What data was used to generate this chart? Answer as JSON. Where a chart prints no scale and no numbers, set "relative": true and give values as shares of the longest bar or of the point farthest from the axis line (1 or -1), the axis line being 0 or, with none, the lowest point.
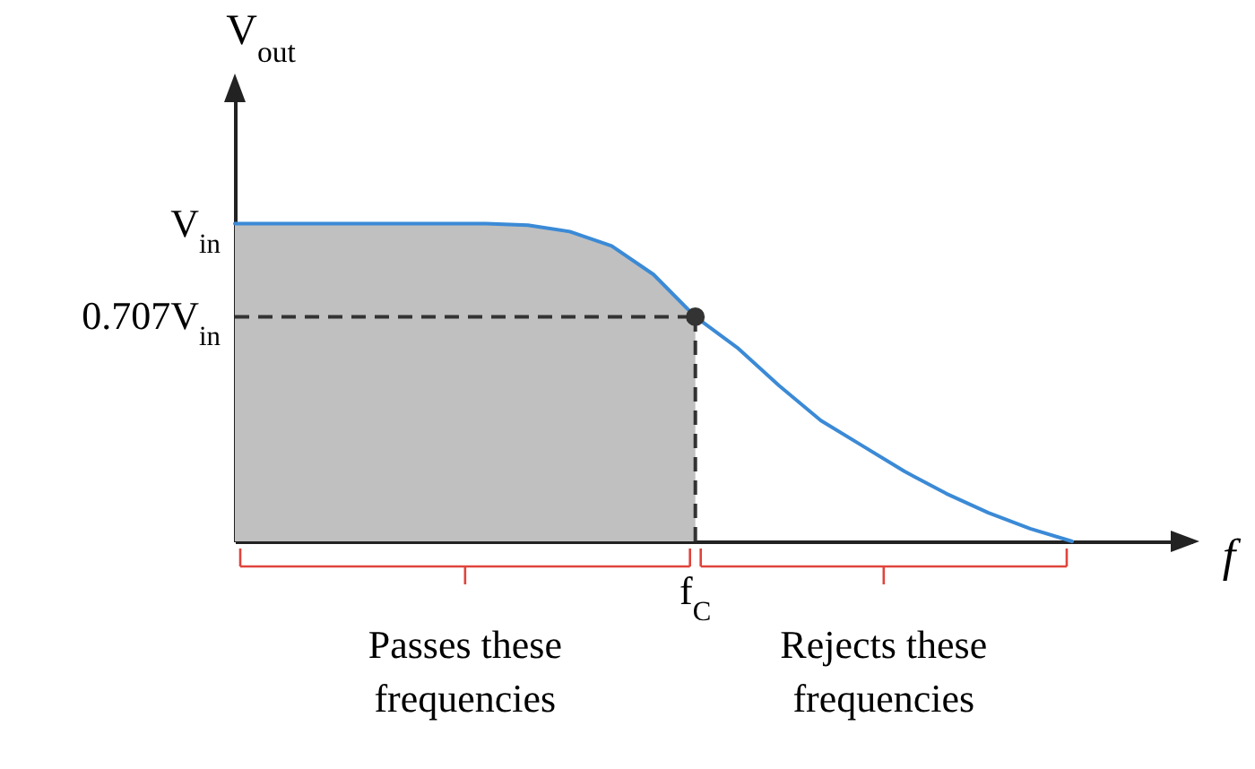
{
  "chart_data": {
    "type": "line",
    "xlabel": "f",
    "ylabel": "V$_{out}$",
    "categories": [
      null,
      null,
      null,
      null,
      null,
      null,
      null,
      null,
      null,
      null,
      null,
      null,
      null,
      null,
      null,
      null,
      null,
      null,
      null,
      null,
      null
    ],
    "relative": true,
    "series": [
      {
        "color": "#3b8ad6",
        "values": [
          1,
          1,
          1,
          1,
          1,
          1,
          1,
          0.995,
          0.975,
          0.93,
          0.84,
          0.707,
          0.61,
          0.49,
          0.38,
          0.3,
          0.22,
          0.15,
          0.09,
          0.04,
          0
        ]
      }
    ],
    "ref_lines": [
      {
        "axis": "y",
        "value": 0.707,
        "color": "#333333",
        "line_style": "dashed"
      }
    ],
    "annotations": [
      "V$_{in}$",
      "0.707V$_{in}$",
      "f$_{C}$",
      "Passes these frequencies",
      "Rejects these frequencies"
    ]
  }
}
